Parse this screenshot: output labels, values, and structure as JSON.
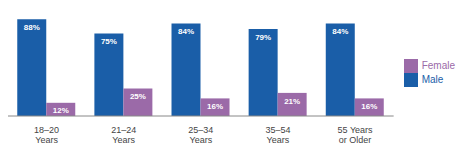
{
  "chart_data": {
    "type": "bar",
    "categories": [
      "18–20\nYears",
      "21–24\nYears",
      "25–34\nYears",
      "35–54\nYears",
      "55 Years\nor Older"
    ],
    "series": [
      {
        "name": "Male",
        "color": "#1a5ea8",
        "values": [
          88,
          75,
          84,
          79,
          84
        ],
        "value_labels": [
          "88%",
          "75%",
          "84%",
          "79%",
          "84%"
        ]
      },
      {
        "name": "Female",
        "color": "#9b6aa8",
        "values": [
          12,
          25,
          16,
          21,
          16
        ],
        "value_labels": [
          "12%",
          "25%",
          "16%",
          "21%",
          "16%"
        ]
      }
    ],
    "ylim": [
      0,
      100
    ],
    "grid": false,
    "data_labels": true,
    "tick_labels": "x",
    "legend": "right"
  }
}
